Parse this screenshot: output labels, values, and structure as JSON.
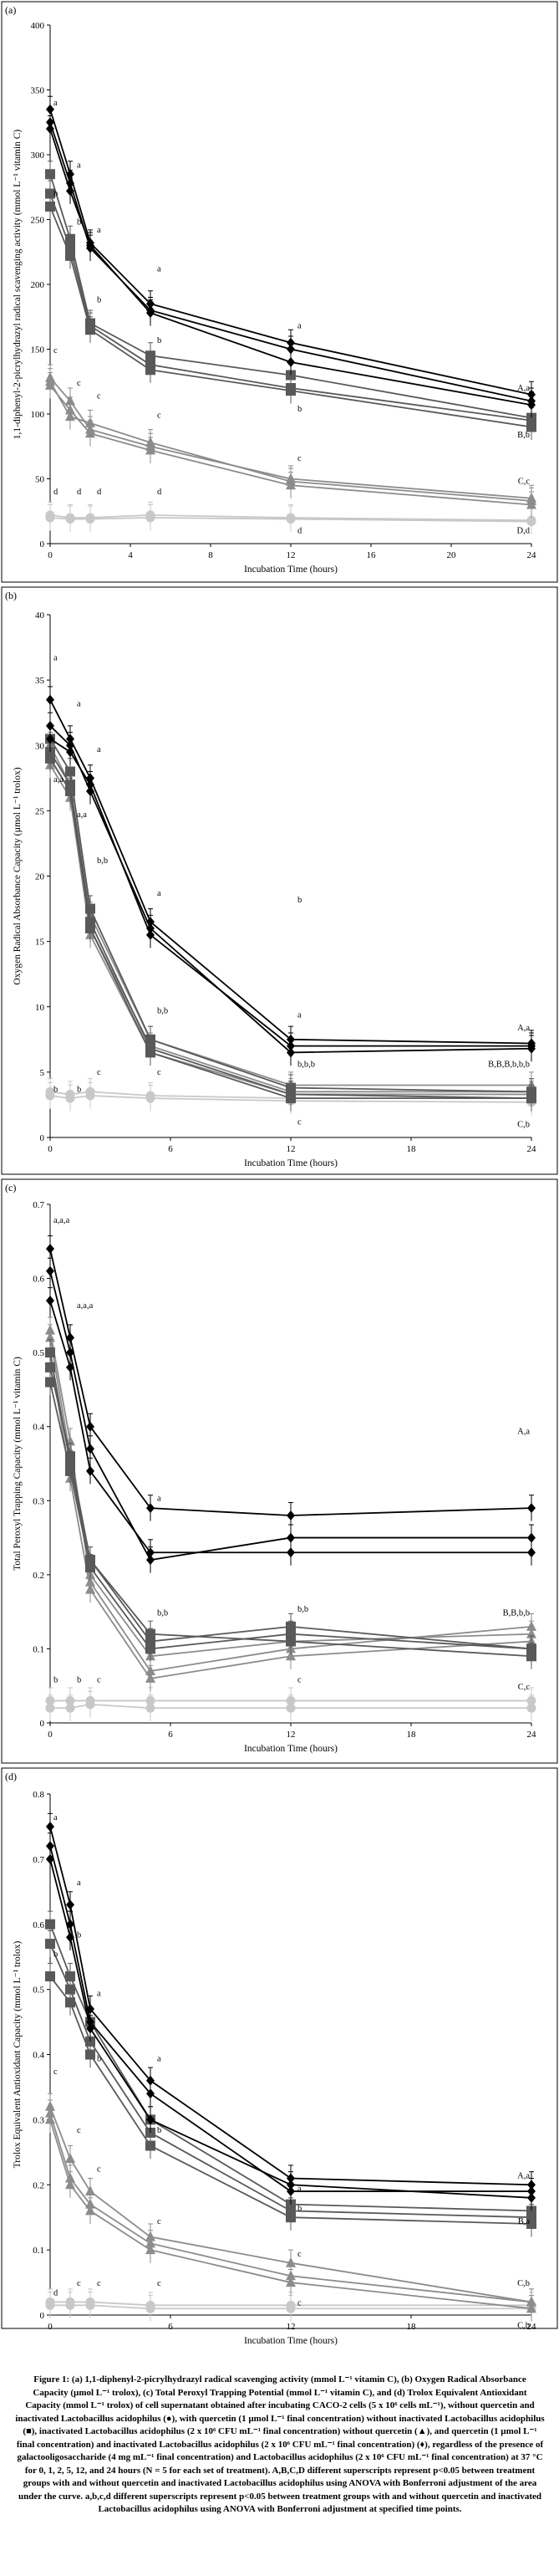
{
  "figure": {
    "caption": "Figure 1: (a) 1,1-diphenyl-2-picrylhydrazyl radical scavenging activity (mmol L⁻¹ vitamin C), (b) Oxygen Radical Absorbance Capacity (µmol L⁻¹ trolox), (c) Total Peroxyl Trapping Potential (mmol L⁻¹ vitamin C), and (d) Trolox Equivalent Antioxidant Capacity (mmol L⁻¹ trolox) of cell supernatant obtained after incubating CACO-2 cells (5 x 10⁶ cells mL⁻¹), without quercetin and inactivated Lactobacillus acidophilus (●), with quercetin (1 µmol L⁻¹ final concentration) without inactivated Lactobacillus acidophilus (■), inactivated Lactobacillus acidophilus (2 x 10⁶ CFU mL⁻¹ final concentration) without quercetin (▲), and quercetin (1 µmol L⁻¹ final concentration) and inactivated Lactobacillus acidophilus (2 x 10⁶ CFU mL⁻¹ final concentration) (♦), regardless of the presence of galactooligosaccharide (4 mg mL⁻¹ final concentration) and Lactobacillus acidophilus (2 x 10⁶ CFU mL⁻¹ final concentration) at 37 °C for 0, 1, 2, 5, 12, and 24 hours (N = 5 for each set of treatment). A,B,C,D different superscripts represent p<0.05 between treatment groups with and without quercetin and inactivated Lactobacillus acidophilus using ANOVA with Bonferroni adjustment of the area under the curve. a,b,c,d different superscripts represent p<0.05 between treatment groups with and without quercetin and inactivated Lactobacillus acidophilus using ANOVA with Bonferroni adjustment at specified time points."
  },
  "colors": {
    "diamond": "#000000",
    "square": "#595959",
    "triangle": "#8c8c8c",
    "circle": "#c8c8c8"
  },
  "chart_data": [
    {
      "panel_label": "(a)",
      "type": "line",
      "xlabel": "Incubation Time (hours)",
      "ylabel": "1,1-diphenyl-2-picrylhydrazyl radical scavenging activity (mmol L⁻¹ vitamin C)",
      "xlim": [
        0,
        24
      ],
      "ylim": [
        0,
        400
      ],
      "xticks": [
        0,
        4,
        8,
        12,
        16,
        20,
        24
      ],
      "yticks": [
        0,
        50,
        100,
        150,
        200,
        250,
        300,
        350,
        400
      ],
      "x": [
        0,
        1,
        2,
        5,
        12,
        24
      ],
      "series": [
        {
          "marker": "diamond",
          "values": [
            335,
            285,
            232,
            185,
            155,
            115
          ]
        },
        {
          "marker": "diamond",
          "values": [
            325,
            278,
            228,
            180,
            150,
            110
          ]
        },
        {
          "marker": "diamond",
          "values": [
            320,
            272,
            230,
            178,
            140,
            107
          ]
        },
        {
          "marker": "square",
          "values": [
            285,
            235,
            170,
            145,
            130,
            97
          ]
        },
        {
          "marker": "square",
          "values": [
            270,
            228,
            168,
            138,
            120,
            95
          ]
        },
        {
          "marker": "square",
          "values": [
            260,
            222,
            165,
            134,
            118,
            90
          ]
        },
        {
          "marker": "triangle",
          "values": [
            128,
            110,
            88,
            75,
            50,
            35
          ]
        },
        {
          "marker": "triangle",
          "values": [
            125,
            98,
            93,
            78,
            48,
            33
          ]
        },
        {
          "marker": "triangle",
          "values": [
            122,
            103,
            85,
            72,
            45,
            30
          ]
        },
        {
          "marker": "circle",
          "values": [
            22,
            20,
            20,
            22,
            20,
            18
          ]
        },
        {
          "marker": "circle",
          "values": [
            20,
            19,
            19,
            20,
            19,
            17
          ]
        }
      ],
      "annotations": [
        {
          "text": "a",
          "x": 0,
          "y": 338
        },
        {
          "text": "b",
          "x": 0,
          "y": 268
        },
        {
          "text": "a",
          "x": 1,
          "y": 290
        },
        {
          "text": "b",
          "x": 1,
          "y": 246
        },
        {
          "text": "a",
          "x": 2,
          "y": 240
        },
        {
          "text": "b",
          "x": 2,
          "y": 186
        },
        {
          "text": "a",
          "x": 5,
          "y": 210
        },
        {
          "text": "b",
          "x": 5,
          "y": 155
        },
        {
          "text": "a",
          "x": 12,
          "y": 166
        },
        {
          "text": "b",
          "x": 12,
          "y": 102
        },
        {
          "text": "c",
          "x": 0,
          "y": 147
        },
        {
          "text": "c",
          "x": 1,
          "y": 122
        },
        {
          "text": "c",
          "x": 2,
          "y": 112
        },
        {
          "text": "c",
          "x": 5,
          "y": 97
        },
        {
          "text": "c",
          "x": 12,
          "y": 64
        },
        {
          "text": "d",
          "x": 0,
          "y": 38
        },
        {
          "text": "d",
          "x": 1,
          "y": 38
        },
        {
          "text": "d",
          "x": 2,
          "y": 38
        },
        {
          "text": "d",
          "x": 5,
          "y": 38
        },
        {
          "text": "d",
          "x": 12,
          "y": 8
        }
      ],
      "end_labels": [
        {
          "text": "A,a",
          "y": 118
        },
        {
          "text": "B,b",
          "y": 82
        },
        {
          "text": "C,c",
          "y": 46
        },
        {
          "text": "D,d",
          "y": 8
        }
      ]
    },
    {
      "panel_label": "(b)",
      "type": "line",
      "xlabel": "Incubation Time (hours)",
      "ylabel": "Oxygen Radical Absorbance Capacity (µmol L⁻¹ trolox)",
      "xlim": [
        0,
        24
      ],
      "ylim": [
        0,
        40
      ],
      "xticks": [
        0,
        6,
        12,
        18,
        24
      ],
      "yticks": [
        0,
        5,
        10,
        15,
        20,
        25,
        30,
        35,
        40
      ],
      "x": [
        0,
        1,
        2,
        5,
        12,
        24
      ],
      "series": [
        {
          "marker": "diamond",
          "values": [
            33.5,
            30.5,
            27.5,
            16.5,
            7.5,
            7.2
          ]
        },
        {
          "marker": "diamond",
          "values": [
            31.5,
            30.0,
            26.5,
            16.0,
            6.5,
            6.8
          ]
        },
        {
          "marker": "diamond",
          "values": [
            30.5,
            29.5,
            27.0,
            15.5,
            7.0,
            7.0
          ]
        },
        {
          "marker": "square",
          "values": [
            30.5,
            28.0,
            17.5,
            7.5,
            3.8,
            3.5
          ]
        },
        {
          "marker": "square",
          "values": [
            29.5,
            27.0,
            16.5,
            6.8,
            3.3,
            3.0
          ]
        },
        {
          "marker": "square",
          "values": [
            29.0,
            26.5,
            16.0,
            6.5,
            3.0,
            3.0
          ]
        },
        {
          "marker": "triangle",
          "values": [
            30.0,
            27.0,
            17.0,
            7.5,
            4.0,
            4.0
          ]
        },
        {
          "marker": "triangle",
          "values": [
            29.0,
            26.5,
            16.0,
            7.0,
            3.5,
            3.5
          ]
        },
        {
          "marker": "triangle",
          "values": [
            28.5,
            26.0,
            15.5,
            6.5,
            3.3,
            3.3
          ]
        },
        {
          "marker": "circle",
          "values": [
            3.5,
            3.3,
            3.5,
            3.2,
            3.0,
            3.0
          ]
        },
        {
          "marker": "circle",
          "values": [
            3.2,
            3.0,
            3.2,
            3.0,
            2.8,
            2.7
          ]
        }
      ],
      "annotations": [
        {
          "text": "a",
          "x": 0,
          "y": 36.5
        },
        {
          "text": "a,a",
          "x": 0,
          "y": 27.2
        },
        {
          "text": "a",
          "x": 1,
          "y": 33.0
        },
        {
          "text": "a,a",
          "x": 1,
          "y": 24.5
        },
        {
          "text": "a",
          "x": 2,
          "y": 29.5
        },
        {
          "text": "b,b",
          "x": 2,
          "y": 21.0
        },
        {
          "text": "a",
          "x": 5,
          "y": 18.5
        },
        {
          "text": "b,b",
          "x": 5,
          "y": 9.5
        },
        {
          "text": "b",
          "x": 12,
          "y": 18.0
        },
        {
          "text": "a",
          "x": 12,
          "y": 9.2
        },
        {
          "text": "b,b,b",
          "x": 12,
          "y": 5.4
        },
        {
          "text": "b",
          "x": 0,
          "y": 3.5
        },
        {
          "text": "b",
          "x": 1,
          "y": 3.5
        },
        {
          "text": "c",
          "x": 2,
          "y": 4.8
        },
        {
          "text": "c",
          "x": 5,
          "y": 4.8
        },
        {
          "text": "c",
          "x": 12,
          "y": 1.0
        }
      ],
      "end_labels": [
        {
          "text": "A,a",
          "y": 8.2
        },
        {
          "text": "B,B,B,b,b,b",
          "y": 5.4
        },
        {
          "text": "C,b",
          "y": 0.8
        }
      ]
    },
    {
      "panel_label": "(c)",
      "type": "line",
      "xlabel": "Incubation Time (hours)",
      "ylabel": "Total Peroxyl Trapping Capacity (mmol L⁻¹ vitamin C)",
      "xlim": [
        0,
        24
      ],
      "ylim": [
        0,
        0.7
      ],
      "xticks": [
        0,
        6,
        12,
        18,
        24
      ],
      "yticks": [
        0,
        0.1,
        0.2,
        0.3,
        0.4,
        0.5,
        0.6,
        0.7
      ],
      "ytick_labels": [
        "0",
        "0.1",
        "0.2",
        "0.3",
        "0.4",
        "0.5",
        "0.6",
        "0.7"
      ],
      "x": [
        0,
        1,
        2,
        5,
        12,
        24
      ],
      "series": [
        {
          "marker": "diamond",
          "values": [
            0.64,
            0.52,
            0.4,
            0.29,
            0.28,
            0.29
          ]
        },
        {
          "marker": "diamond",
          "values": [
            0.61,
            0.5,
            0.37,
            0.22,
            0.25,
            0.25
          ]
        },
        {
          "marker": "diamond",
          "values": [
            0.57,
            0.48,
            0.34,
            0.23,
            0.23,
            0.23
          ]
        },
        {
          "marker": "square",
          "values": [
            0.5,
            0.35,
            0.22,
            0.11,
            0.13,
            0.1
          ]
        },
        {
          "marker": "square",
          "values": [
            0.46,
            0.34,
            0.21,
            0.1,
            0.12,
            0.1
          ]
        },
        {
          "marker": "square",
          "values": [
            0.48,
            0.36,
            0.22,
            0.12,
            0.11,
            0.09
          ]
        },
        {
          "marker": "triangle",
          "values": [
            0.53,
            0.38,
            0.19,
            0.07,
            0.1,
            0.13
          ]
        },
        {
          "marker": "triangle",
          "values": [
            0.52,
            0.36,
            0.2,
            0.09,
            0.11,
            0.12
          ]
        },
        {
          "marker": "triangle",
          "values": [
            0.5,
            0.33,
            0.18,
            0.06,
            0.09,
            0.11
          ]
        },
        {
          "marker": "circle",
          "values": [
            0.03,
            0.03,
            0.03,
            0.03,
            0.03,
            0.03
          ]
        },
        {
          "marker": "circle",
          "values": [
            0.02,
            0.02,
            0.025,
            0.02,
            0.02,
            0.02
          ]
        }
      ],
      "annotations": [
        {
          "text": "a,a,a",
          "x": 0,
          "y": 0.675
        },
        {
          "text": "a,a,a",
          "x": 1,
          "y": 0.56
        },
        {
          "text": "a",
          "x": 5,
          "y": 0.3
        },
        {
          "text": "b,b",
          "x": 5,
          "y": 0.145
        },
        {
          "text": "b,b",
          "x": 12,
          "y": 0.15
        },
        {
          "text": "c",
          "x": 12,
          "y": 0.055
        },
        {
          "text": "b",
          "x": 0,
          "y": 0.055
        },
        {
          "text": "b",
          "x": 1,
          "y": 0.055
        },
        {
          "text": "c",
          "x": 2,
          "y": 0.055
        }
      ],
      "end_labels": [
        {
          "text": "A,a",
          "y": 0.39
        },
        {
          "text": "B,B,b,b",
          "y": 0.145
        },
        {
          "text": "C,c",
          "y": 0.045
        }
      ]
    },
    {
      "panel_label": "(d)",
      "type": "line",
      "xlabel": "Incubation Time (hours)",
      "ylabel": "Trolox Equivalent Antioxidant Capacity (mmol L⁻¹ trolox)",
      "xlim": [
        0,
        24
      ],
      "ylim": [
        0,
        0.8
      ],
      "xticks": [
        0,
        6,
        12,
        18,
        24
      ],
      "yticks": [
        0,
        0.1,
        0.2,
        0.3,
        0.4,
        0.5,
        0.6,
        0.7,
        0.8
      ],
      "ytick_labels": [
        "0",
        "0.1",
        "0.2",
        "0.3",
        "0.4",
        "0.5",
        "0.6",
        "0.7",
        "0.8"
      ],
      "x": [
        0,
        1,
        2,
        5,
        12,
        24
      ],
      "series": [
        {
          "marker": "diamond",
          "values": [
            0.75,
            0.63,
            0.47,
            0.36,
            0.21,
            0.2
          ]
        },
        {
          "marker": "diamond",
          "values": [
            0.72,
            0.6,
            0.45,
            0.34,
            0.19,
            0.19
          ]
        },
        {
          "marker": "diamond",
          "values": [
            0.7,
            0.58,
            0.44,
            0.3,
            0.2,
            0.18
          ]
        },
        {
          "marker": "square",
          "values": [
            0.6,
            0.52,
            0.45,
            0.3,
            0.17,
            0.16
          ]
        },
        {
          "marker": "square",
          "values": [
            0.57,
            0.5,
            0.42,
            0.28,
            0.16,
            0.15
          ]
        },
        {
          "marker": "square",
          "values": [
            0.52,
            0.48,
            0.4,
            0.26,
            0.15,
            0.14
          ]
        },
        {
          "marker": "triangle",
          "values": [
            0.32,
            0.24,
            0.19,
            0.12,
            0.08,
            0.02
          ]
        },
        {
          "marker": "triangle",
          "values": [
            0.31,
            0.21,
            0.17,
            0.11,
            0.06,
            0.02
          ]
        },
        {
          "marker": "triangle",
          "values": [
            0.3,
            0.2,
            0.16,
            0.1,
            0.05,
            0.01
          ]
        },
        {
          "marker": "circle",
          "values": [
            0.02,
            0.02,
            0.02,
            0.015,
            0.015,
            0.015
          ]
        },
        {
          "marker": "circle",
          "values": [
            0.015,
            0.015,
            0.015,
            0.01,
            0.01,
            0.01
          ]
        }
      ],
      "annotations": [
        {
          "text": "a",
          "x": 0,
          "y": 0.76
        },
        {
          "text": "b",
          "x": 0,
          "y": 0.55
        },
        {
          "text": "a",
          "x": 1,
          "y": 0.66
        },
        {
          "text": "b",
          "x": 1,
          "y": 0.58
        },
        {
          "text": "a",
          "x": 2,
          "y": 0.49
        },
        {
          "text": "b",
          "x": 2,
          "y": 0.39
        },
        {
          "text": "a",
          "x": 5,
          "y": 0.39
        },
        {
          "text": "b",
          "x": 5,
          "y": 0.28
        },
        {
          "text": "a",
          "x": 12,
          "y": 0.19
        },
        {
          "text": "b",
          "x": 12,
          "y": 0.16
        },
        {
          "text": "c",
          "x": 0,
          "y": 0.37
        },
        {
          "text": "c",
          "x": 1,
          "y": 0.28
        },
        {
          "text": "c",
          "x": 2,
          "y": 0.22
        },
        {
          "text": "c",
          "x": 5,
          "y": 0.14
        },
        {
          "text": "c",
          "x": 12,
          "y": 0.09
        },
        {
          "text": "d",
          "x": 0,
          "y": 0.03
        },
        {
          "text": "c",
          "x": 1,
          "y": 0.045
        },
        {
          "text": "c",
          "x": 2,
          "y": 0.045
        },
        {
          "text": "c",
          "x": 5,
          "y": 0.045
        },
        {
          "text": "c",
          "x": 12,
          "y": 0.015
        }
      ],
      "end_labels": [
        {
          "text": "A,a",
          "y": 0.21
        },
        {
          "text": "B,a",
          "y": 0.14
        },
        {
          "text": "C,b",
          "y": 0.045
        },
        {
          "text": "C,b",
          "y": -0.02
        }
      ]
    }
  ]
}
